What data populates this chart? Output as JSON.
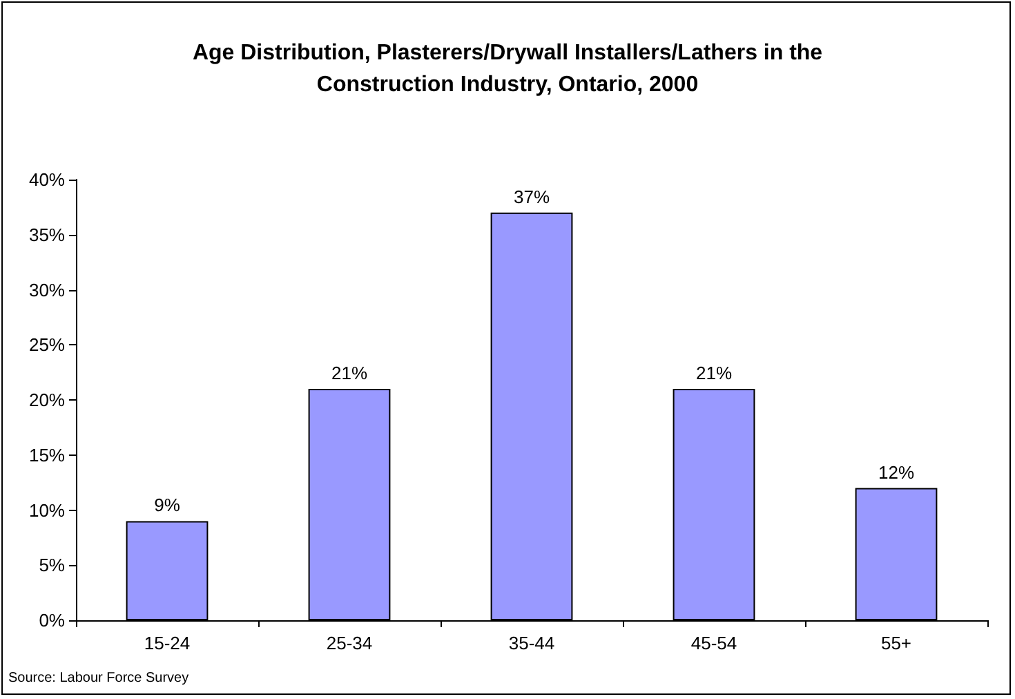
{
  "chart_data": {
    "type": "bar",
    "title": "Age Distribution, Plasterers/Drywall Installers/Lathers in the\nConstruction Industry, Ontario, 2000",
    "categories": [
      "15-24",
      "25-34",
      "35-44",
      "45-54",
      "55+"
    ],
    "values": [
      9,
      21,
      37,
      21,
      12
    ],
    "value_labels": [
      "9%",
      "21%",
      "37%",
      "21%",
      "12%"
    ],
    "color": "#9999ff",
    "ylim": [
      0,
      40
    ],
    "yticks": [
      {
        "value": 0,
        "label": "0%"
      },
      {
        "value": 5,
        "label": "5%"
      },
      {
        "value": 10,
        "label": "10%"
      },
      {
        "value": 15,
        "label": "15%"
      },
      {
        "value": 20,
        "label": "20%"
      },
      {
        "value": 25,
        "label": "25%"
      },
      {
        "value": 30,
        "label": "30%"
      },
      {
        "value": 35,
        "label": "35%"
      },
      {
        "value": 40,
        "label": "40%"
      }
    ],
    "annotations": [
      "Source: Labour Force Survey"
    ]
  }
}
